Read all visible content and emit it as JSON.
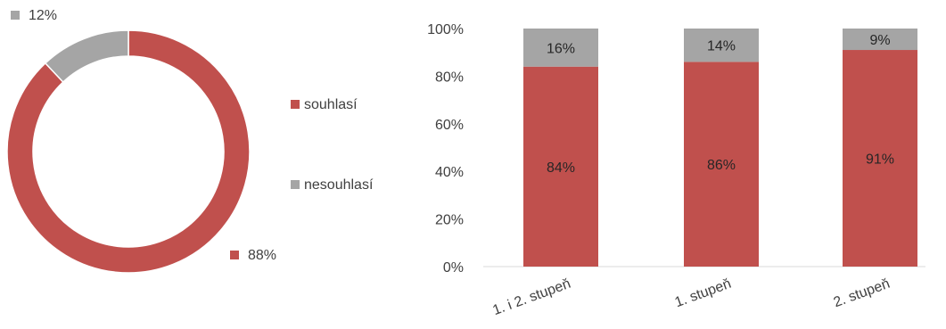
{
  "chart_data": [
    {
      "type": "pie",
      "donut": true,
      "title": "",
      "slices": [
        {
          "name": "souhlasí",
          "value": 88,
          "label": "88%",
          "color": "#C0504D"
        },
        {
          "name": "nesouhlasí",
          "value": 12,
          "label": "12%",
          "color": "#A5A5A5"
        }
      ],
      "legend": {
        "placement": "right",
        "entries": [
          "souhlasí",
          "nesouhlasí"
        ]
      }
    },
    {
      "type": "bar",
      "stacked": true,
      "normalized": true,
      "title": "",
      "categories": [
        "1. i 2. stupeň",
        "1. stupeň",
        "2. stupeň"
      ],
      "series": [
        {
          "name": "souhlasí",
          "values": [
            84,
            86,
            91
          ],
          "labels": [
            "84%",
            "86%",
            "91%"
          ],
          "color": "#C0504D"
        },
        {
          "name": "nesouhlasí",
          "values": [
            16,
            14,
            9
          ],
          "labels": [
            "16%",
            "14%",
            "9%"
          ],
          "color": "#A5A5A5"
        }
      ],
      "ylim": [
        0,
        100
      ],
      "yticks": [
        "0%",
        "20%",
        "40%",
        "60%",
        "80%",
        "100%"
      ],
      "grid": false,
      "xlabel": "",
      "ylabel": ""
    }
  ]
}
